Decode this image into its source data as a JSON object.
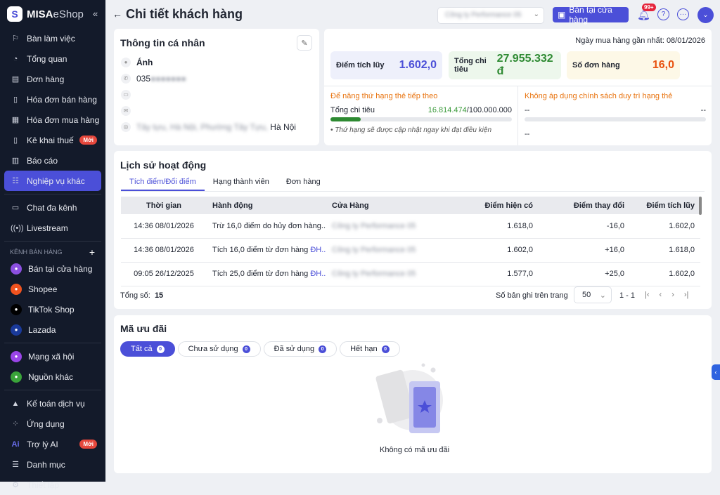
{
  "brand": {
    "logo_bold": "MISA",
    "logo_light": "eShop"
  },
  "sidebar": {
    "items": [
      {
        "label": "Bàn làm việc",
        "icon": "desk-icon"
      },
      {
        "label": "Tổng quan",
        "icon": "dashboard-icon"
      },
      {
        "label": "Đơn hàng",
        "icon": "order-icon"
      },
      {
        "label": "Hóa đơn bán hàng",
        "icon": "invoice-icon"
      },
      {
        "label": "Hóa đơn mua hàng",
        "icon": "receipt-icon"
      },
      {
        "label": "Kê khai thuế",
        "icon": "tax-icon",
        "badge": "Mới"
      },
      {
        "label": "Báo cáo",
        "icon": "report-icon"
      },
      {
        "label": "Nghiệp vụ khác",
        "icon": "list-icon",
        "active": true
      },
      {
        "label": "Chat đa kênh",
        "icon": "chat-icon"
      },
      {
        "label": "Livestream",
        "icon": "livestream-icon"
      }
    ],
    "section_title": "KÊNH BÁN HÀNG",
    "channels": [
      {
        "label": "Bán tại cửa hàng",
        "color": "#8b4fe0"
      },
      {
        "label": "Shopee",
        "color": "#f0531f"
      },
      {
        "label": "TikTok Shop",
        "color": "#000000"
      },
      {
        "label": "Lazada",
        "color": "#1a3a9a"
      },
      {
        "label": "Mạng xã hội",
        "color": "#9a45e8"
      },
      {
        "label": "Nguồn khác",
        "color": "#3aa43a"
      }
    ],
    "bottom": [
      {
        "label": "Kế toán dịch vụ",
        "icon": "accounting-icon"
      },
      {
        "label": "Ứng dụng",
        "icon": "apps-icon"
      },
      {
        "label": "Trợ lý AI",
        "icon": "ai-icon",
        "badge": "Mới"
      },
      {
        "label": "Danh mục",
        "icon": "catalog-icon"
      },
      {
        "label": "Thiết lập",
        "icon": "settings-icon"
      }
    ]
  },
  "header": {
    "title": "Chi tiết khách hàng",
    "store": "Công ty Performance 05",
    "pos_button": "Bán tại cửa hàng",
    "notifications": "99+"
  },
  "personal": {
    "title": "Thông tin cá nhân",
    "name": "Ánh",
    "phone": "035",
    "address_blurred": "Tây tựu, Hà Nội, Phường Tây Tựu,",
    "address_city": "Hà Nội"
  },
  "stats": {
    "last_purchase": "Ngày mua hàng gần nhất: 08/01/2026",
    "points_label": "Điểm tích lũy",
    "points": "1.602,0",
    "spend_label": "Tổng chi tiêu",
    "spend": "27.955.332 đ",
    "orders_label": "Số đơn hàng",
    "orders": "16,0",
    "upgrade_title": "Để nâng thứ hạng thẻ tiếp theo",
    "upgrade_metric": "Tổng chi tiêu",
    "upgrade_current": "16.814.474",
    "upgrade_target": "/100.000.000",
    "upgrade_progress": 0.168,
    "upgrade_note": "Thứ hạng sẽ được cập nhật ngay khi đạt điều kiện",
    "maintain_title": "Không áp dụng chính sách duy trì hạng thẻ",
    "maintain_left": "--",
    "maintain_right": "--",
    "maintain_bottom": "--"
  },
  "activity": {
    "title": "Lịch sử hoạt động",
    "tabs": [
      "Tích điểm/Đổi điểm",
      "Hạng thành viên",
      "Đơn hàng"
    ],
    "columns": [
      "Thời gian",
      "Hành động",
      "Cửa Hàng",
      "Điểm hiện có",
      "Điểm thay đổi",
      "Điểm tích lũy"
    ],
    "rows": [
      {
        "time": "14:36 08/01/2026",
        "action": "Trừ 16,0 điểm do hủy đơn hàng...",
        "link": "",
        "store": "Công ty Performance 05",
        "current": "1.618,0",
        "change": "-16,0",
        "total": "1.602,0"
      },
      {
        "time": "14:36 08/01/2026",
        "action": "Tích 16,0 điểm từ đơn hàng ",
        "link": "ĐH...",
        "store": "Công ty Performance 05",
        "current": "1.602,0",
        "change": "+16,0",
        "total": "1.618,0"
      },
      {
        "time": "09:05 26/12/2025",
        "action": "Tích 25,0 điểm từ đơn hàng ",
        "link": "ĐH...",
        "store": "Công ty Performance 05",
        "current": "1.577,0",
        "change": "+25,0",
        "total": "1.602,0"
      }
    ],
    "total_label": "Tổng số:",
    "total": "15",
    "per_page_label": "Số bản ghi trên trang",
    "per_page": "50",
    "range": "1 - 1"
  },
  "promo": {
    "title": "Mã ưu đãi",
    "filters": [
      {
        "label": "Tất cả",
        "count": "0"
      },
      {
        "label": "Chưa sử dụng",
        "count": "0"
      },
      {
        "label": "Đã sử dụng",
        "count": "0"
      },
      {
        "label": "Hết hạn",
        "count": "0"
      }
    ],
    "empty": "Không có mã ưu đãi"
  }
}
